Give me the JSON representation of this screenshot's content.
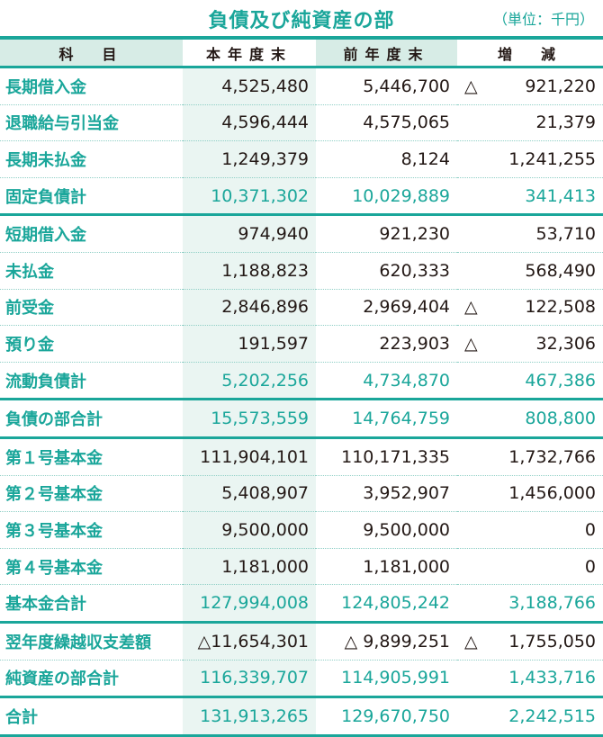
{
  "header": {
    "title": "負債及び純資産の部",
    "unit": "（単位：千円）"
  },
  "columns": [
    "科　目",
    "本年度末",
    "前年度末",
    "増　減"
  ],
  "rows": [
    {
      "label": "長期借入金",
      "cur": "4,525,480",
      "prev": "5,446,700",
      "diff_sign": "△",
      "diff": "921,220",
      "type": "item"
    },
    {
      "label": "退職給与引当金",
      "cur": "4,596,444",
      "prev": "4,575,065",
      "diff_sign": "",
      "diff": "21,379",
      "type": "item"
    },
    {
      "label": "長期未払金",
      "cur": "1,249,379",
      "prev": "8,124",
      "diff_sign": "",
      "diff": "1,241,255",
      "type": "item"
    },
    {
      "label": "固定負債計",
      "cur": "10,371,302",
      "prev": "10,029,889",
      "diff_sign": "",
      "diff": "341,413",
      "type": "subtotal"
    },
    {
      "label": "短期借入金",
      "cur": "974,940",
      "prev": "921,230",
      "diff_sign": "",
      "diff": "53,710",
      "type": "item"
    },
    {
      "label": "未払金",
      "cur": "1,188,823",
      "prev": "620,333",
      "diff_sign": "",
      "diff": "568,490",
      "type": "item"
    },
    {
      "label": "前受金",
      "cur": "2,846,896",
      "prev": "2,969,404",
      "diff_sign": "△",
      "diff": "122,508",
      "type": "item"
    },
    {
      "label": "預り金",
      "cur": "191,597",
      "prev": "223,903",
      "diff_sign": "△",
      "diff": "32,306",
      "type": "item"
    },
    {
      "label": "流動負債計",
      "cur": "5,202,256",
      "prev": "4,734,870",
      "diff_sign": "",
      "diff": "467,386",
      "type": "subtotal"
    },
    {
      "label": "負債の部合計",
      "cur": "15,573,559",
      "prev": "14,764,759",
      "diff_sign": "",
      "diff": "808,800",
      "type": "subtotal"
    },
    {
      "label": "第１号基本金",
      "cur": "111,904,101",
      "prev": "110,171,335",
      "diff_sign": "",
      "diff": "1,732,766",
      "type": "item"
    },
    {
      "label": "第２号基本金",
      "cur": "5,408,907",
      "prev": "3,952,907",
      "diff_sign": "",
      "diff": "1,456,000",
      "type": "item"
    },
    {
      "label": "第３号基本金",
      "cur": "9,500,000",
      "prev": "9,500,000",
      "diff_sign": "",
      "diff": "0",
      "type": "item"
    },
    {
      "label": "第４号基本金",
      "cur": "1,181,000",
      "prev": "1,181,000",
      "diff_sign": "",
      "diff": "0",
      "type": "item"
    },
    {
      "label": "基本金合計",
      "cur": "127,994,008",
      "prev": "124,805,242",
      "diff_sign": "",
      "diff": "3,188,766",
      "type": "subtotal"
    },
    {
      "label": "翌年度繰越収支差額",
      "cur": "△11,654,301",
      "prev": "△ 9,899,251",
      "diff_sign": "△",
      "diff": "1,755,050",
      "type": "item-strong"
    },
    {
      "label": "純資産の部合計",
      "cur": "116,339,707",
      "prev": "114,905,991",
      "diff_sign": "",
      "diff": "1,433,716",
      "type": "subtotal"
    },
    {
      "label": "合計",
      "cur": "131,913,265",
      "prev": "129,670,750",
      "diff_sign": "",
      "diff": "2,242,515",
      "type": "total"
    }
  ]
}
